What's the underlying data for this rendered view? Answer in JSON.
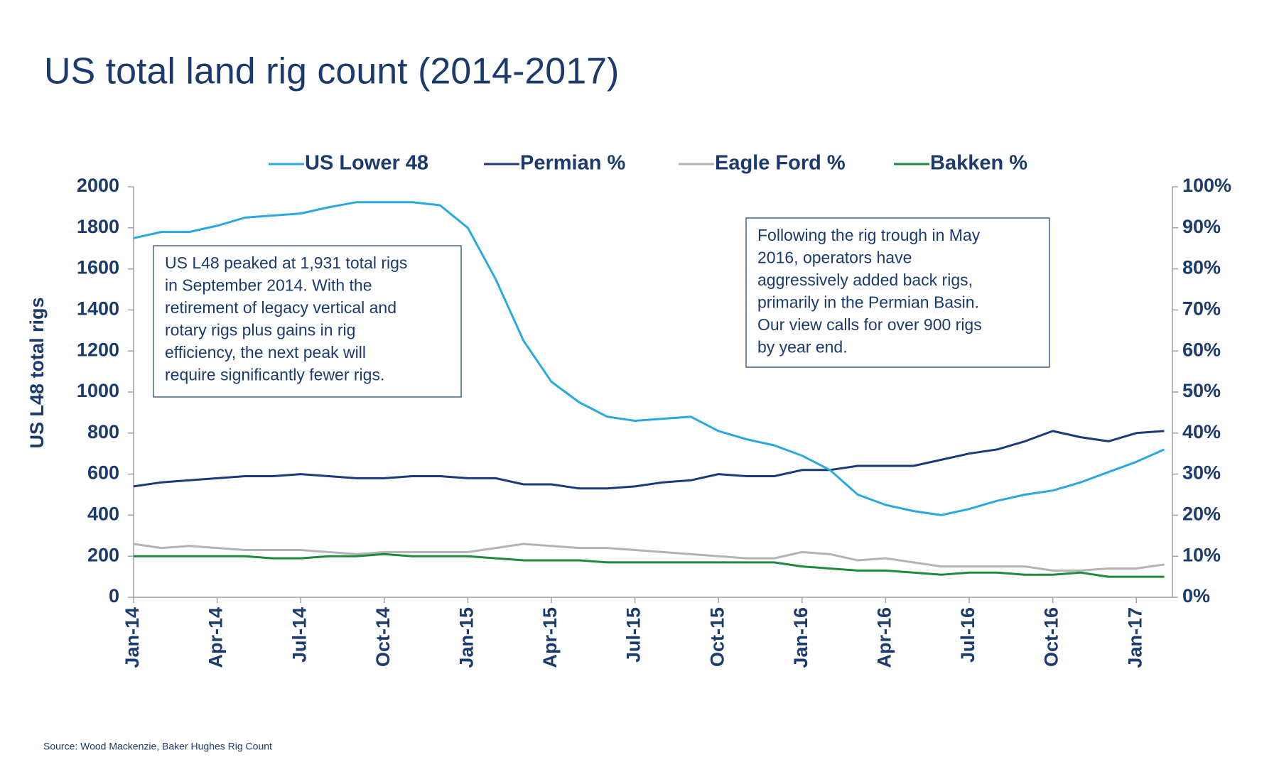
{
  "chart_data": {
    "type": "line",
    "title": "US total land rig count (2014-2017)",
    "y_label": "US L48 total rigs",
    "source": "Source: Wood Mackenzie, Baker Hughes Rig Count",
    "categories": [
      "Jan-14",
      null,
      null,
      "Apr-14",
      null,
      null,
      "Jul-14",
      null,
      null,
      "Oct-14",
      null,
      null,
      "Jan-15",
      null,
      null,
      "Apr-15",
      null,
      null,
      "Jul-15",
      null,
      null,
      "Oct-15",
      null,
      null,
      "Jan-16",
      null,
      null,
      "Apr-16",
      null,
      null,
      "Jul-16",
      null,
      null,
      "Oct-16",
      null,
      null,
      "Jan-17",
      null
    ],
    "series": [
      {
        "name": "US Lower 48",
        "color": "#29a9e0",
        "axis": "y",
        "values": [
          1750,
          1780,
          1780,
          1810,
          1850,
          1860,
          1870,
          1900,
          1925,
          1925,
          1925,
          1910,
          1800,
          1550,
          1250,
          1050,
          950,
          880,
          860,
          870,
          880,
          810,
          770,
          740,
          690,
          620,
          500,
          450,
          420,
          400,
          430,
          470,
          500,
          520,
          560,
          610,
          660,
          720
        ]
      },
      {
        "name": "Permian %",
        "color": "#1a3a7c",
        "axis": "y2",
        "values": [
          27,
          28,
          28.5,
          29,
          29.5,
          29.5,
          30,
          29.5,
          29,
          29,
          29.5,
          29.5,
          29,
          29,
          27.5,
          27.5,
          26.5,
          26.5,
          27,
          28,
          28.5,
          30,
          29.5,
          29.5,
          31,
          31,
          32,
          32,
          32,
          33.5,
          35,
          36,
          38,
          40.5,
          39,
          38,
          40,
          40.5
        ]
      },
      {
        "name": "Eagle Ford %",
        "color": "#b3b3b3",
        "axis": "y2",
        "values": [
          13,
          12,
          12.5,
          12,
          11.5,
          11.5,
          11.5,
          11,
          10.5,
          11,
          11,
          11,
          11,
          12,
          13,
          12.5,
          12,
          12,
          11.5,
          11,
          10.5,
          10,
          9.5,
          9.5,
          11,
          10.5,
          9,
          9.5,
          8.5,
          7.5,
          7.5,
          7.5,
          7.5,
          6.5,
          6.5,
          7,
          7,
          8
        ]
      },
      {
        "name": "Bakken %",
        "color": "#1e8a3c",
        "axis": "y2",
        "values": [
          10,
          10,
          10,
          10,
          10,
          9.5,
          9.5,
          10,
          10,
          10.5,
          10,
          10,
          10,
          9.5,
          9,
          9,
          9,
          8.5,
          8.5,
          8.5,
          8.5,
          8.5,
          8.5,
          8.5,
          7.5,
          7,
          6.5,
          6.5,
          6,
          5.5,
          6,
          6,
          5.5,
          5.5,
          6,
          5,
          5,
          5
        ]
      }
    ],
    "ylim": [
      0,
      2000
    ],
    "yticks": [
      0,
      200,
      400,
      600,
      800,
      1000,
      1200,
      1400,
      1600,
      1800,
      2000
    ],
    "y2lim": [
      0,
      100
    ],
    "y2ticks": [
      {
        "value": 0,
        "label": "0%"
      },
      {
        "value": 10,
        "label": "10%"
      },
      {
        "value": 20,
        "label": "20%"
      },
      {
        "value": 30,
        "label": "30%"
      },
      {
        "value": 40,
        "label": "40%"
      },
      {
        "value": 50,
        "label": "50%"
      },
      {
        "value": 60,
        "label": "60%"
      },
      {
        "value": 70,
        "label": "70%"
      },
      {
        "value": 80,
        "label": "80%"
      },
      {
        "value": 90,
        "label": "90%"
      },
      {
        "value": 100,
        "label": "100%"
      }
    ],
    "grid": false,
    "legend": "top",
    "annotations": [
      {
        "lines": [
          "US L48 peaked at 1,931 total rigs",
          "in September 2014. With the",
          "retirement of legacy vertical and",
          "rotary rigs plus gains in rig",
          "efficiency, the next peak will",
          "require significantly fewer rigs."
        ]
      },
      {
        "lines": [
          "Following the rig trough in May",
          "2016, operators have",
          "aggressively added back rigs,",
          "primarily in the Permian Basin.",
          "Our view calls for over 900 rigs",
          "by year end."
        ]
      }
    ]
  }
}
